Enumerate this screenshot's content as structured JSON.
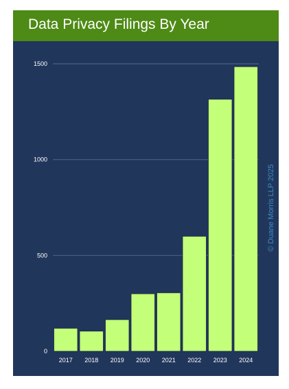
{
  "chart_data": {
    "type": "bar",
    "title": "Data Privacy Filings By Year",
    "xlabel": "",
    "ylabel": "",
    "categories": [
      "2017",
      "2018",
      "2019",
      "2020",
      "2021",
      "2022",
      "2023",
      "2024"
    ],
    "values": [
      120,
      105,
      165,
      300,
      305,
      600,
      1315,
      1485
    ],
    "ylim": [
      0,
      1500
    ],
    "yticks": [
      0,
      500,
      1000,
      1500
    ],
    "grid": true,
    "legend": "none",
    "annotation": "© Duane Morris LLP 2025",
    "colors": {
      "background": "#21365b",
      "title_bar": "#4e8a16",
      "bar": "#c3ff78",
      "bar_edge": "#1b2a45",
      "grid": "#4a5f86",
      "axis_text": "#ffffff",
      "watermark": "#3b8ec8"
    }
  }
}
